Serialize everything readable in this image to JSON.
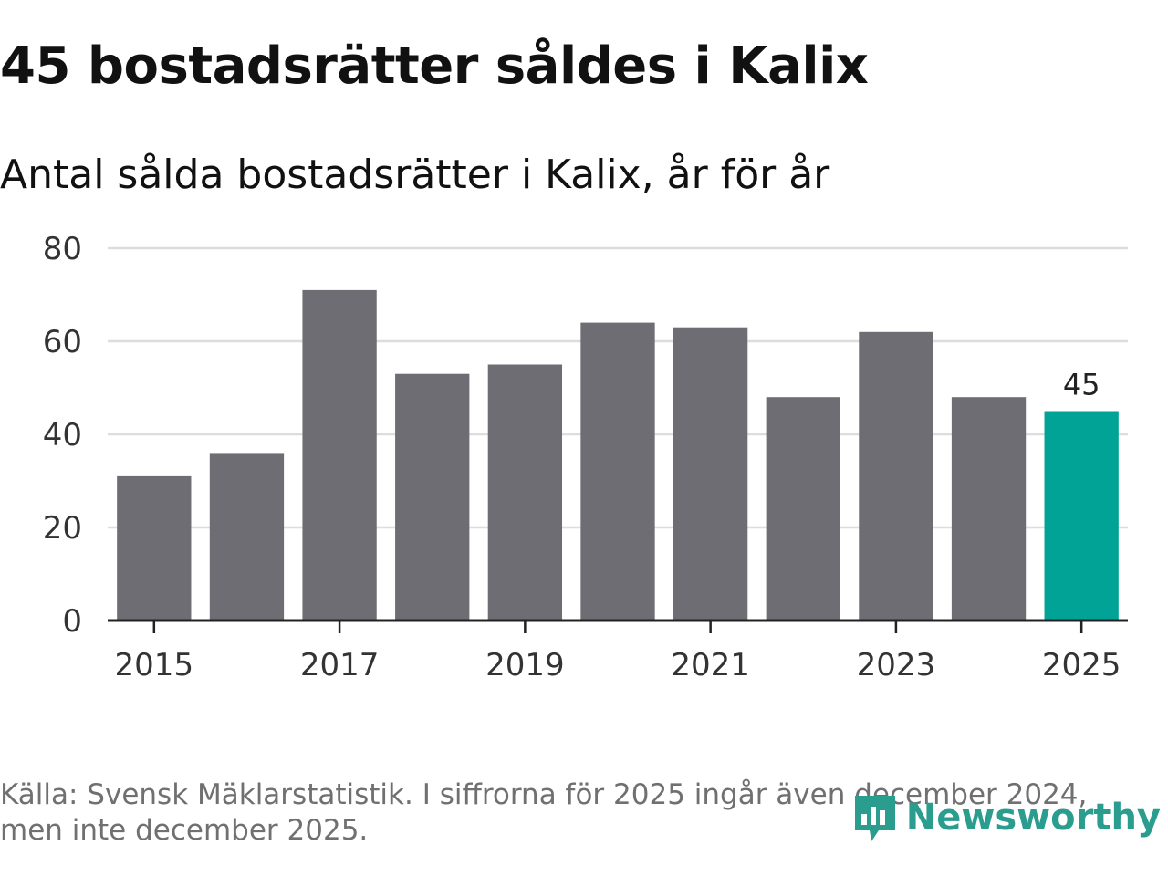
{
  "title": "45 bostadsrätter såldes i Kalix",
  "subtitle": "Antal sålda bostadsrätter i Kalix, år för år",
  "source_note": "Källa: Svensk Mäklarstatistik. I siffrorna för 2025 ingår även december 2024, men inte december 2025.",
  "brand": {
    "name": "Newsworthy",
    "icon": "newsworthy-logo-icon",
    "color": "#2a9d8f"
  },
  "colors": {
    "bar": "#6e6d74",
    "highlight": "#00a396",
    "grid": "#dddddd",
    "axis": "#222222"
  },
  "chart_data": {
    "type": "bar",
    "x": [
      2015,
      2016,
      2017,
      2018,
      2019,
      2020,
      2021,
      2022,
      2023,
      2024,
      2025
    ],
    "values": [
      31,
      36,
      71,
      53,
      55,
      64,
      63,
      48,
      62,
      48,
      45
    ],
    "x_tick_labels": [
      "2015",
      "2017",
      "2019",
      "2021",
      "2023",
      "2025"
    ],
    "y_ticks": [
      0,
      20,
      40,
      60,
      80
    ],
    "ylim": [
      0,
      80
    ],
    "grid": true,
    "highlight": {
      "x": 2025,
      "label": "45"
    }
  }
}
